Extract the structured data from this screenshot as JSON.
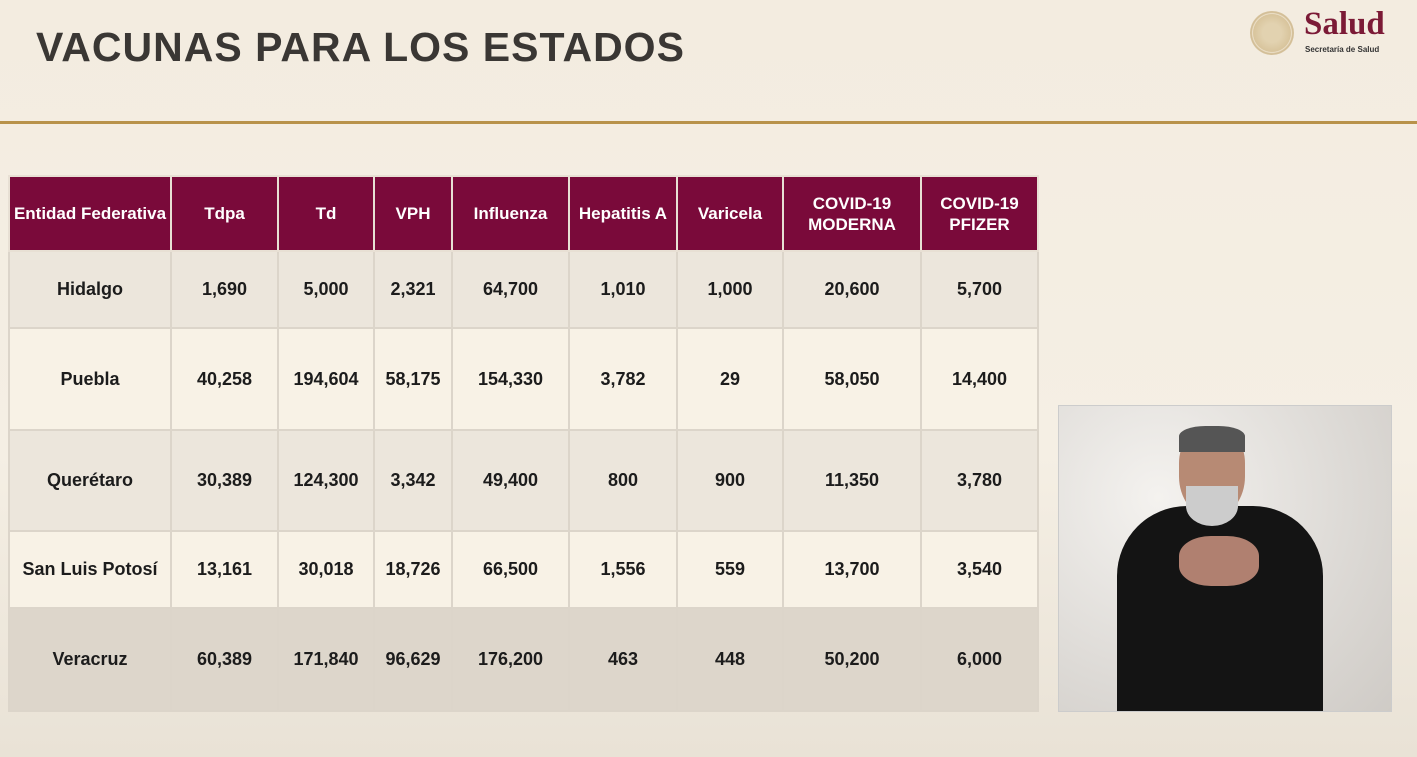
{
  "header": {
    "title": "VACUNAS PARA LOS ESTADOS",
    "logo_text": "Salud",
    "logo_subtext": "Secretaría de Salud"
  },
  "table": {
    "columns": [
      "Entidad Federativa",
      "Tdpa",
      "Td",
      "VPH",
      "Influenza",
      "Hepatitis A",
      "Varicela",
      "COVID-19 MODERNA",
      "COVID-19 PFIZER"
    ],
    "rows": [
      [
        "Hidalgo",
        "1,690",
        "5,000",
        "2,321",
        "64,700",
        "1,010",
        "1,000",
        "20,600",
        "5,700"
      ],
      [
        "Puebla",
        "40,258",
        "194,604",
        "58,175",
        "154,330",
        "3,782",
        "29",
        "58,050",
        "14,400"
      ],
      [
        "Querétaro",
        "30,389",
        "124,300",
        "3,342",
        "49,400",
        "800",
        "900",
        "11,350",
        "3,780"
      ],
      [
        "San Luis Potosí",
        "13,161",
        "30,018",
        "18,726",
        "66,500",
        "1,556",
        "559",
        "13,700",
        "3,540"
      ],
      [
        "Veracruz",
        "60,389",
        "171,840",
        "96,629",
        "176,200",
        "463",
        "448",
        "50,200",
        "6,000"
      ]
    ]
  },
  "colors": {
    "header_bg": "#7a0a3a",
    "accent_rule": "#b8924a",
    "brand": "#7b1a36"
  }
}
